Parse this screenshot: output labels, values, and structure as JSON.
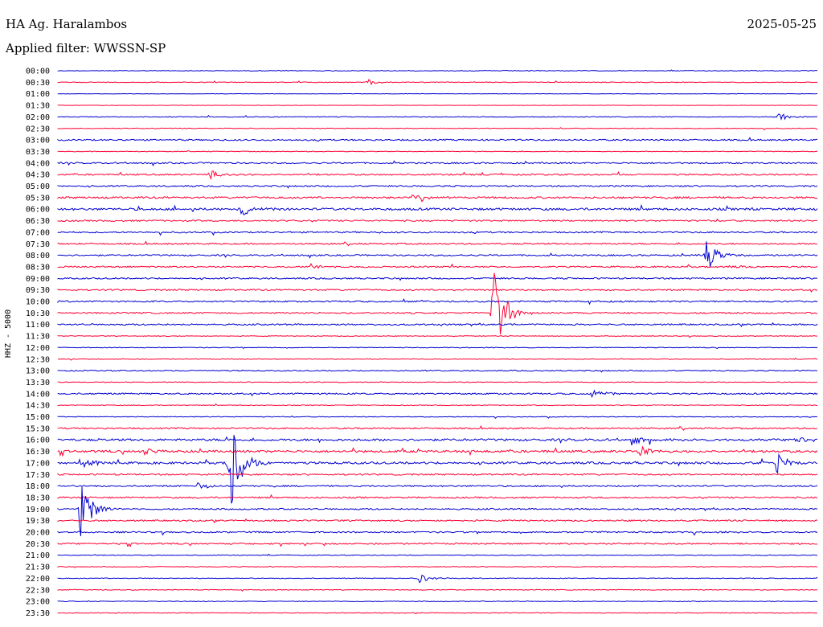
{
  "header": {
    "station": "HA Ag. Haralambos",
    "date": "2025-05-25",
    "filter": "Applied filter: WWSSN-SP"
  },
  "channel_label": "HHZ - 5000",
  "colors": {
    "blue": "#0000d0",
    "red": "#ff0033"
  },
  "chart_data": {
    "type": "line",
    "title": "HA Ag. Haralambos",
    "ylabel": "HHZ - 5000",
    "xlabel": "",
    "rows": [
      "00:00",
      "00:30",
      "01:00",
      "01:30",
      "02:00",
      "02:30",
      "03:00",
      "03:30",
      "04:00",
      "04:30",
      "05:00",
      "05:30",
      "06:00",
      "06:30",
      "07:00",
      "07:30",
      "08:00",
      "08:30",
      "09:00",
      "09:30",
      "10:00",
      "10:30",
      "11:00",
      "11:30",
      "12:00",
      "12:30",
      "13:00",
      "13:30",
      "14:00",
      "14:30",
      "15:00",
      "15:30",
      "16:00",
      "16:30",
      "17:00",
      "17:30",
      "18:00",
      "18:30",
      "19:00",
      "19:30",
      "20:00",
      "20:30",
      "21:00",
      "21:30",
      "22:00",
      "22:30",
      "23:00",
      "23:30"
    ],
    "row_colors": [
      "blue",
      "red"
    ],
    "minutes_per_row": 30,
    "noise_level": [
      1,
      1,
      0.5,
      0.5,
      1,
      1,
      2,
      1,
      2,
      2,
      2,
      2.5,
      3,
      2,
      2,
      2,
      2,
      2,
      2,
      2,
      2,
      2,
      2,
      1,
      1,
      1,
      1.5,
      1,
      2,
      1,
      1,
      2,
      3,
      3,
      3,
      2,
      2,
      2,
      2,
      2,
      2,
      2,
      1,
      1,
      1,
      1,
      1,
      1
    ],
    "events": [
      {
        "row": "00:30",
        "minute": 12.3,
        "amplitude": 4
      },
      {
        "row": "02:00",
        "minute": 28.5,
        "amplitude": 5
      },
      {
        "row": "04:30",
        "minute": 6.0,
        "amplitude": 7
      },
      {
        "row": "05:30",
        "minute": 14.1,
        "amplitude": 9
      },
      {
        "row": "06:00",
        "minute": 7.3,
        "amplitude": 8
      },
      {
        "row": "08:00",
        "minute": 25.6,
        "amplitude": 22
      },
      {
        "row": "08:30",
        "minute": 10.0,
        "amplitude": 4
      },
      {
        "row": "08:30",
        "minute": 26.6,
        "amplitude": 4
      },
      {
        "row": "10:30",
        "minute": 17.2,
        "amplitude": 60
      },
      {
        "row": "14:00",
        "minute": 21.1,
        "amplitude": 7
      },
      {
        "row": "16:00",
        "minute": 22.6,
        "amplitude": 8
      },
      {
        "row": "16:00",
        "minute": 29.2,
        "amplitude": 5
      },
      {
        "row": "16:30",
        "minute": 3.5,
        "amplitude": 6
      },
      {
        "row": "16:30",
        "minute": 23.0,
        "amplitude": 8
      },
      {
        "row": "17:00",
        "minute": 0.9,
        "amplitude": 7
      },
      {
        "row": "17:00",
        "minute": 6.8,
        "amplitude": 60
      },
      {
        "row": "17:00",
        "minute": 28.4,
        "amplitude": 14
      },
      {
        "row": "18:00",
        "minute": 5.5,
        "amplitude": 5
      },
      {
        "row": "19:00",
        "minute": 0.9,
        "amplitude": 38
      },
      {
        "row": "22:00",
        "minute": 14.3,
        "amplitude": 6
      }
    ]
  }
}
